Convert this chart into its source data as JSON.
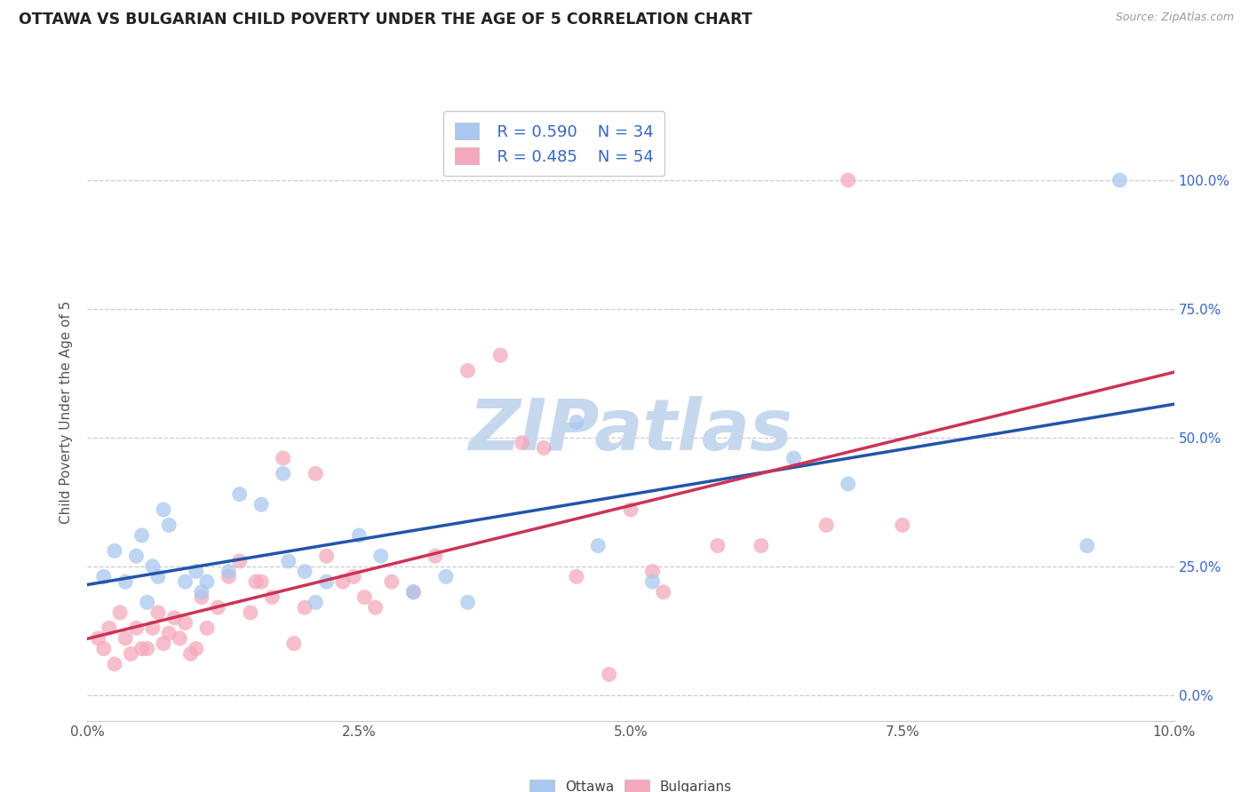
{
  "title": "OTTAWA VS BULGARIAN CHILD POVERTY UNDER THE AGE OF 5 CORRELATION CHART",
  "source": "Source: ZipAtlas.com",
  "ylabel": "Child Poverty Under the Age of 5",
  "xlim": [
    0.0,
    10.0
  ],
  "ylim": [
    -5.0,
    115.0
  ],
  "xtick_vals": [
    0.0,
    2.5,
    5.0,
    7.5,
    10.0
  ],
  "xtick_labels": [
    "0.0%",
    "2.5%",
    "5.0%",
    "7.5%",
    "10.0%"
  ],
  "ytick_vals": [
    0.0,
    25.0,
    50.0,
    75.0,
    100.0
  ],
  "ytick_labels": [
    "0.0%",
    "25.0%",
    "50.0%",
    "75.0%",
    "100.0%"
  ],
  "ottawa_color": "#A8C8F0",
  "bulgarian_color": "#F5A8BC",
  "ottawa_line_color": "#2255AA",
  "bulgarian_line_color": "#CC3355",
  "legend_R_ottawa": "R = 0.590",
  "legend_N_ottawa": "N = 34",
  "legend_R_bulgarian": "R = 0.485",
  "legend_N_bulgarian": "N = 54",
  "watermark": "ZIPatlas",
  "watermark_color": "#C5D8EE",
  "background_color": "#FFFFFF",
  "grid_color": "#CCCCCC",
  "ottawa_x": [
    0.15,
    0.25,
    0.35,
    0.45,
    0.5,
    0.55,
    0.6,
    0.65,
    0.7,
    0.75,
    0.9,
    1.0,
    1.05,
    1.1,
    1.3,
    1.4,
    1.6,
    1.8,
    1.85,
    2.0,
    2.1,
    2.2,
    2.5,
    2.7,
    3.0,
    3.3,
    3.5,
    4.5,
    4.7,
    5.2,
    6.5,
    7.0,
    9.2,
    9.5
  ],
  "ottawa_y": [
    23,
    28,
    22,
    27,
    31,
    18,
    25,
    23,
    36,
    33,
    22,
    24,
    20,
    22,
    24,
    39,
    37,
    43,
    26,
    24,
    18,
    22,
    31,
    27,
    20,
    23,
    18,
    53,
    29,
    22,
    46,
    41,
    29,
    100
  ],
  "bulgarian_x": [
    0.1,
    0.15,
    0.2,
    0.25,
    0.3,
    0.35,
    0.4,
    0.45,
    0.5,
    0.55,
    0.6,
    0.65,
    0.7,
    0.75,
    0.8,
    0.85,
    0.9,
    0.95,
    1.0,
    1.05,
    1.1,
    1.2,
    1.3,
    1.4,
    1.5,
    1.55,
    1.6,
    1.7,
    1.8,
    1.9,
    2.0,
    2.1,
    2.2,
    2.35,
    2.45,
    2.55,
    2.65,
    2.8,
    3.0,
    3.2,
    3.5,
    3.8,
    4.0,
    4.2,
    4.5,
    4.8,
    5.0,
    5.2,
    5.3,
    5.8,
    6.2,
    6.8,
    7.0,
    7.5
  ],
  "bulgarian_y": [
    11,
    9,
    13,
    6,
    16,
    11,
    8,
    13,
    9,
    9,
    13,
    16,
    10,
    12,
    15,
    11,
    14,
    8,
    9,
    19,
    13,
    17,
    23,
    26,
    16,
    22,
    22,
    19,
    46,
    10,
    17,
    43,
    27,
    22,
    23,
    19,
    17,
    22,
    20,
    27,
    63,
    66,
    49,
    48,
    23,
    4,
    36,
    24,
    20,
    29,
    29,
    33,
    100,
    33
  ]
}
